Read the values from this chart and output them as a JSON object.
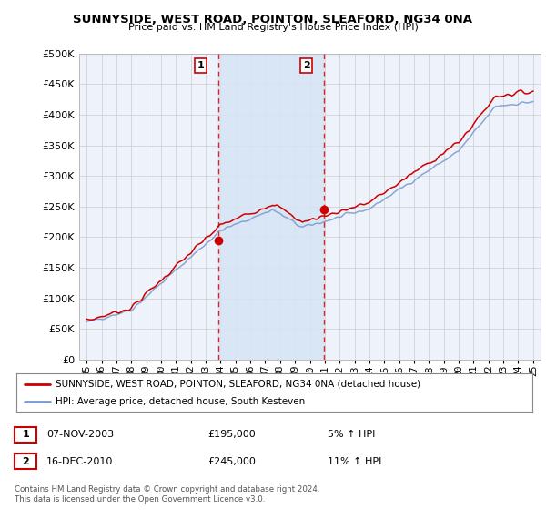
{
  "title": "SUNNYSIDE, WEST ROAD, POINTON, SLEAFORD, NG34 0NA",
  "subtitle": "Price paid vs. HM Land Registry's House Price Index (HPI)",
  "red_label": "SUNNYSIDE, WEST ROAD, POINTON, SLEAFORD, NG34 0NA (detached house)",
  "blue_label": "HPI: Average price, detached house, South Kesteven",
  "transaction1_date": "07-NOV-2003",
  "transaction1_price": "£195,000",
  "transaction1_hpi": "5% ↑ HPI",
  "transaction2_date": "16-DEC-2010",
  "transaction2_price": "£245,000",
  "transaction2_hpi": "11% ↑ HPI",
  "footer": "Contains HM Land Registry data © Crown copyright and database right 2024.\nThis data is licensed under the Open Government Licence v3.0.",
  "background_color": "#ffffff",
  "plot_bg_color": "#eef2fb",
  "grid_color": "#cccccc",
  "red_color": "#cc0000",
  "blue_color": "#7799cc",
  "band_color": "#d6e4f5",
  "vline_color": "#dd2222",
  "marker1_x": 2003.85,
  "marker1_y": 195000,
  "marker2_x": 2010.96,
  "marker2_y": 245000,
  "ylim": [
    0,
    500000
  ],
  "xlim": [
    1994.5,
    2025.5
  ],
  "yticks": [
    0,
    50000,
    100000,
    150000,
    200000,
    250000,
    300000,
    350000,
    400000,
    450000,
    500000
  ],
  "xticks": [
    1995,
    1996,
    1997,
    1998,
    1999,
    2000,
    2001,
    2002,
    2003,
    2004,
    2005,
    2006,
    2007,
    2008,
    2009,
    2010,
    2011,
    2012,
    2013,
    2014,
    2015,
    2016,
    2017,
    2018,
    2019,
    2020,
    2021,
    2022,
    2023,
    2024,
    2025
  ]
}
